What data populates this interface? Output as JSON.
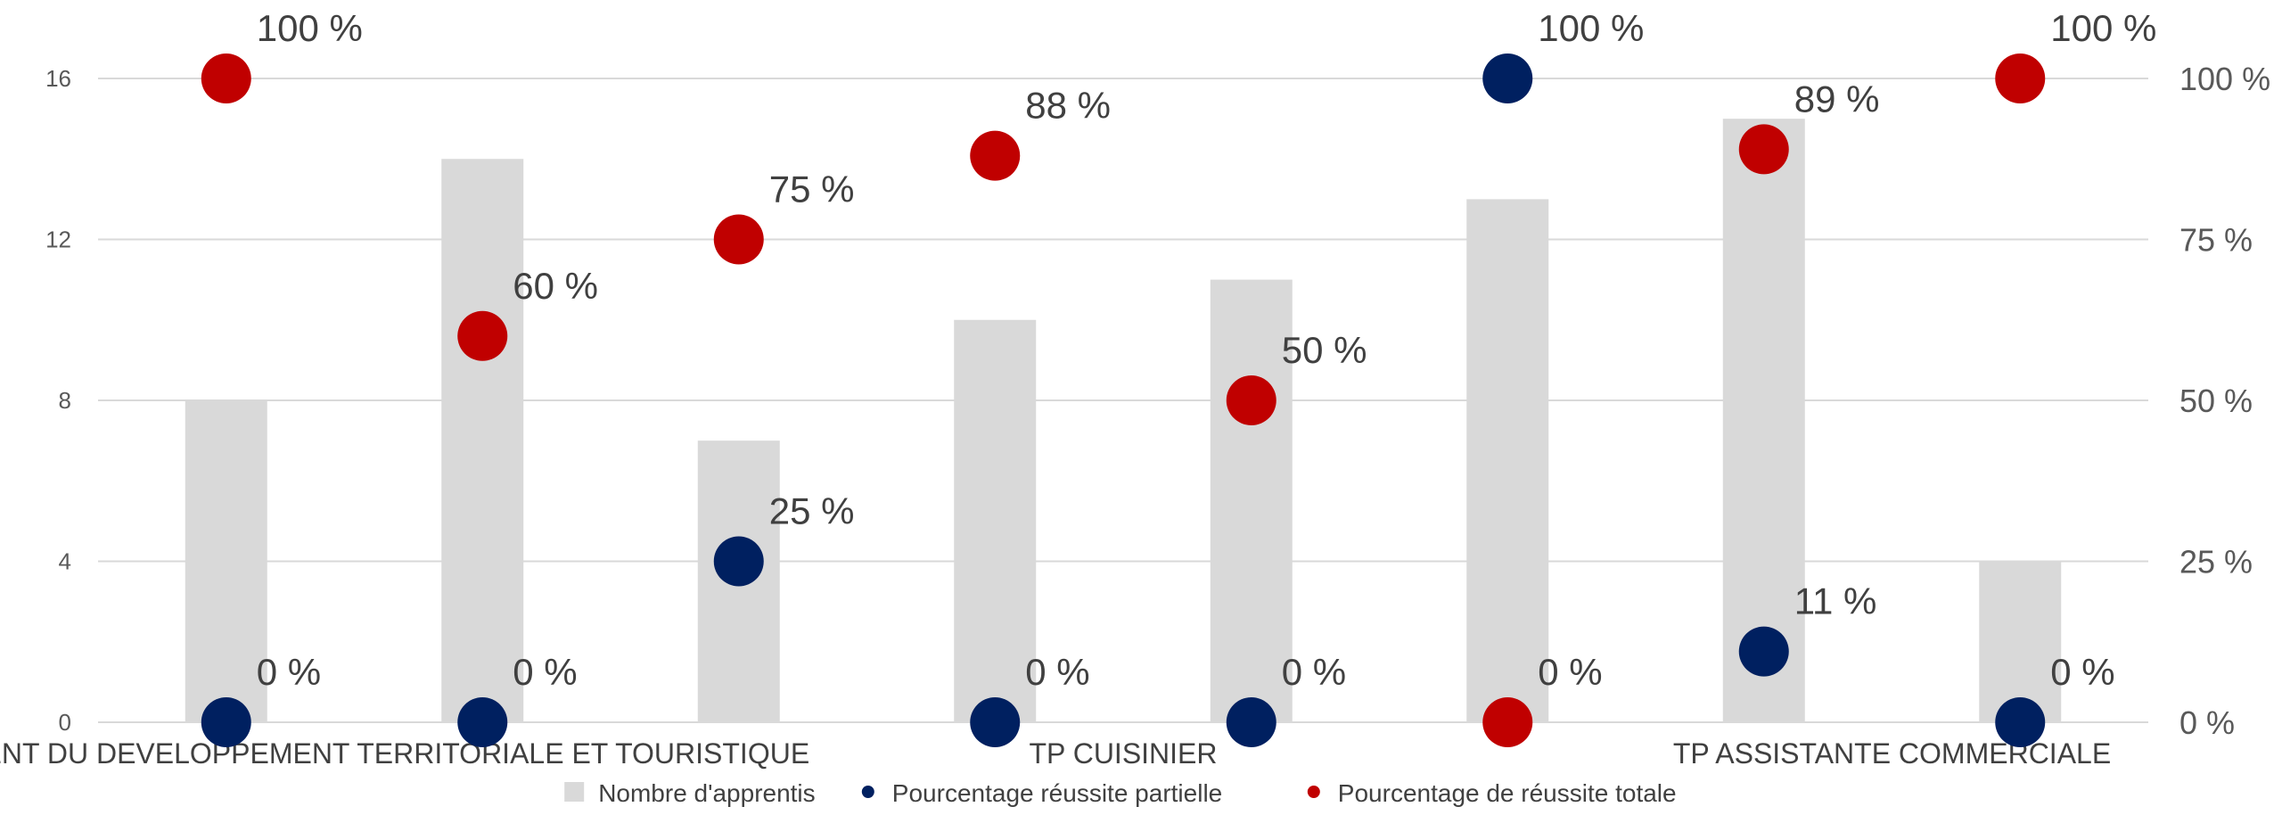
{
  "chart_data": {
    "type": "bar",
    "categories": [
      "TP AGENT DU DEVELOPPEMENT TERRITORIALE ET TOURISTIQUE",
      "",
      "",
      "TP CUISINIER",
      "",
      "",
      "TP ASSISTANTE COMMERCIALE",
      ""
    ],
    "series": [
      {
        "name": "Nombre d'apprentis",
        "type": "bar",
        "axis": "left",
        "color": "#d9d9d9",
        "values": [
          8,
          14,
          7,
          10,
          11,
          13,
          15,
          4
        ]
      },
      {
        "name": "Pourcentage réussite partielle",
        "type": "scatter",
        "axis": "right",
        "color": "#002060",
        "values": [
          0,
          0,
          25,
          0,
          0,
          100,
          11,
          0
        ],
        "labels": [
          "0 %",
          "0 %",
          "25 %",
          "0 %",
          "0 %",
          "100 %",
          "11 %",
          "0 %"
        ],
        "label_visible": [
          true,
          true,
          true,
          true,
          true,
          true,
          true,
          true
        ]
      },
      {
        "name": "Pourcentage de réussite totale",
        "type": "scatter",
        "axis": "right",
        "color": "#c00000",
        "values": [
          100,
          60,
          75,
          88,
          50,
          0,
          89,
          100
        ],
        "labels": [
          "100 %",
          "60 %",
          "75 %",
          "88 %",
          "50 %",
          "0 %",
          "89 %",
          "100 %"
        ],
        "label_visible": [
          true,
          true,
          true,
          true,
          true,
          true,
          true,
          true
        ]
      }
    ],
    "y_left": {
      "ticks": [
        "0",
        "4",
        "8",
        "12",
        "16"
      ],
      "ylim": [
        0,
        16
      ]
    },
    "y_right": {
      "ticks": [
        "0 %",
        "25 %",
        "50 %",
        "75 %",
        "100 %"
      ],
      "ylim": [
        0,
        100
      ]
    },
    "grid": true,
    "legend_position": "bottom"
  }
}
